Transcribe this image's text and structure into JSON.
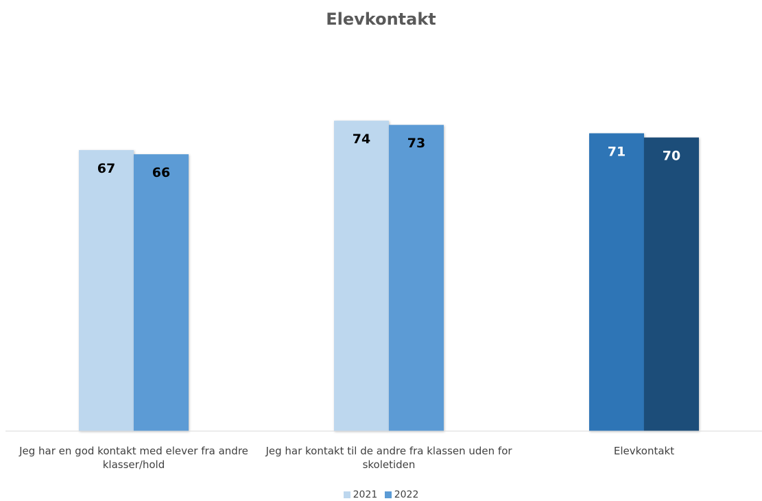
{
  "chart_data": {
    "type": "bar",
    "title": "Elevkontakt",
    "categories": [
      "Jeg har en god kontakt med elever fra andre klasser/hold",
      "Jeg har kontakt til de andre fra klassen uden for skoletiden",
      "Elevkontakt"
    ],
    "series": [
      {
        "name": "2021",
        "values": [
          67,
          74,
          71
        ]
      },
      {
        "name": "2022",
        "values": [
          66,
          73,
          70
        ]
      }
    ],
    "bar_colors": [
      [
        "#bdd7ee",
        "#5b9bd5"
      ],
      [
        "#bdd7ee",
        "#5b9bd5"
      ],
      [
        "#2e75b6",
        "#1f4e79"
      ]
    ],
    "label_colors": [
      [
        "#000000",
        "#000000"
      ],
      [
        "#000000",
        "#000000"
      ],
      [
        "#ffffff",
        "#ffffff"
      ]
    ],
    "legend_colors": [
      "#bdd7ee",
      "#5b9bd5"
    ],
    "ylim": [
      0,
      100
    ],
    "grid": false,
    "legend_position": "bottom",
    "xlabel": "",
    "ylabel": ""
  }
}
